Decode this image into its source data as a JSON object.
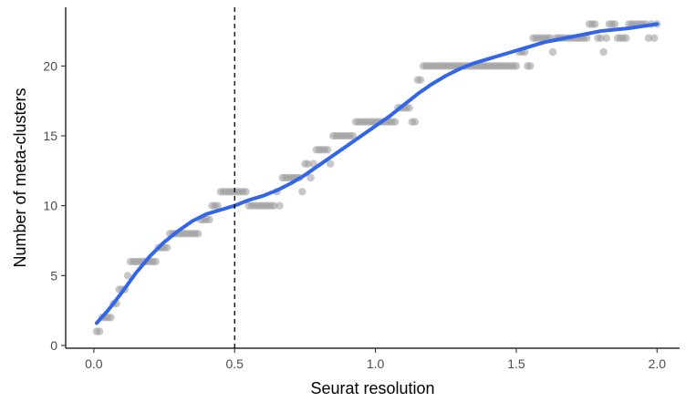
{
  "chart_data": {
    "type": "scatter",
    "title": "",
    "xlabel": "Seurat resolution",
    "ylabel": "Number of meta-clusters",
    "xlim": [
      -0.1,
      2.08
    ],
    "ylim": [
      -0.2,
      24.2
    ],
    "x_ticks": [
      {
        "value": 0.0,
        "label": "0.0"
      },
      {
        "value": 0.5,
        "label": "0.5"
      },
      {
        "value": 1.0,
        "label": "1.0"
      },
      {
        "value": 1.5,
        "label": "1.5"
      },
      {
        "value": 2.0,
        "label": "2.0"
      }
    ],
    "y_ticks": [
      {
        "value": 0,
        "label": "0"
      },
      {
        "value": 5,
        "label": "5"
      },
      {
        "value": 10,
        "label": "10"
      },
      {
        "value": 15,
        "label": "15"
      },
      {
        "value": 20,
        "label": "20"
      }
    ],
    "grid": false,
    "legend": "none",
    "reference_line": {
      "x": 0.5,
      "style": "dashed",
      "color": "#000000"
    },
    "point_color": "#999999",
    "smooth_color": "#3366e6",
    "series": [
      {
        "type": "scatter",
        "points": [
          [
            0.01,
            1
          ],
          [
            0.02,
            1
          ],
          [
            0.03,
            2
          ],
          [
            0.04,
            2
          ],
          [
            0.05,
            2
          ],
          [
            0.06,
            2
          ],
          [
            0.07,
            3
          ],
          [
            0.08,
            3
          ],
          [
            0.09,
            4
          ],
          [
            0.1,
            4
          ],
          [
            0.11,
            4
          ],
          [
            0.12,
            5
          ],
          [
            0.13,
            6
          ],
          [
            0.14,
            6
          ],
          [
            0.15,
            6
          ],
          [
            0.16,
            6
          ],
          [
            0.17,
            6
          ],
          [
            0.18,
            6
          ],
          [
            0.19,
            6
          ],
          [
            0.2,
            6
          ],
          [
            0.21,
            6
          ],
          [
            0.22,
            6
          ],
          [
            0.23,
            7
          ],
          [
            0.24,
            7
          ],
          [
            0.25,
            7
          ],
          [
            0.26,
            7
          ],
          [
            0.27,
            8
          ],
          [
            0.28,
            8
          ],
          [
            0.29,
            8
          ],
          [
            0.3,
            8
          ],
          [
            0.31,
            8
          ],
          [
            0.32,
            8
          ],
          [
            0.33,
            8
          ],
          [
            0.34,
            8
          ],
          [
            0.35,
            8
          ],
          [
            0.36,
            8
          ],
          [
            0.37,
            8
          ],
          [
            0.38,
            9
          ],
          [
            0.39,
            9
          ],
          [
            0.4,
            9
          ],
          [
            0.41,
            9
          ],
          [
            0.42,
            10
          ],
          [
            0.43,
            10
          ],
          [
            0.44,
            10
          ],
          [
            0.45,
            11
          ],
          [
            0.46,
            11
          ],
          [
            0.47,
            11
          ],
          [
            0.48,
            11
          ],
          [
            0.49,
            11
          ],
          [
            0.5,
            11
          ],
          [
            0.51,
            11
          ],
          [
            0.52,
            11
          ],
          [
            0.53,
            11
          ],
          [
            0.54,
            11
          ],
          [
            0.55,
            10
          ],
          [
            0.56,
            10
          ],
          [
            0.57,
            10
          ],
          [
            0.58,
            10
          ],
          [
            0.59,
            10
          ],
          [
            0.6,
            10
          ],
          [
            0.61,
            10
          ],
          [
            0.62,
            10
          ],
          [
            0.63,
            10
          ],
          [
            0.64,
            10
          ],
          [
            0.65,
            11
          ],
          [
            0.66,
            10
          ],
          [
            0.67,
            12
          ],
          [
            0.68,
            12
          ],
          [
            0.69,
            12
          ],
          [
            0.7,
            12
          ],
          [
            0.71,
            12
          ],
          [
            0.72,
            12
          ],
          [
            0.73,
            12
          ],
          [
            0.74,
            11
          ],
          [
            0.75,
            13
          ],
          [
            0.76,
            13
          ],
          [
            0.77,
            12
          ],
          [
            0.78,
            13
          ],
          [
            0.79,
            14
          ],
          [
            0.8,
            14
          ],
          [
            0.81,
            14
          ],
          [
            0.82,
            14
          ],
          [
            0.83,
            14
          ],
          [
            0.84,
            13
          ],
          [
            0.85,
            15
          ],
          [
            0.86,
            15
          ],
          [
            0.87,
            15
          ],
          [
            0.88,
            15
          ],
          [
            0.89,
            15
          ],
          [
            0.9,
            15
          ],
          [
            0.91,
            15
          ],
          [
            0.92,
            15
          ],
          [
            0.93,
            16
          ],
          [
            0.94,
            16
          ],
          [
            0.95,
            16
          ],
          [
            0.96,
            16
          ],
          [
            0.97,
            16
          ],
          [
            0.98,
            16
          ],
          [
            0.99,
            16
          ],
          [
            1.0,
            16
          ],
          [
            1.01,
            16
          ],
          [
            1.02,
            16
          ],
          [
            1.03,
            16
          ],
          [
            1.04,
            16
          ],
          [
            1.05,
            16
          ],
          [
            1.06,
            16
          ],
          [
            1.07,
            16
          ],
          [
            1.08,
            17
          ],
          [
            1.09,
            17
          ],
          [
            1.1,
            17
          ],
          [
            1.11,
            17
          ],
          [
            1.12,
            17
          ],
          [
            1.13,
            16
          ],
          [
            1.14,
            16
          ],
          [
            1.15,
            19
          ],
          [
            1.16,
            19
          ],
          [
            1.17,
            20
          ],
          [
            1.18,
            20
          ],
          [
            1.19,
            20
          ],
          [
            1.2,
            20
          ],
          [
            1.21,
            20
          ],
          [
            1.22,
            20
          ],
          [
            1.23,
            20
          ],
          [
            1.24,
            20
          ],
          [
            1.25,
            20
          ],
          [
            1.26,
            20
          ],
          [
            1.27,
            20
          ],
          [
            1.28,
            20
          ],
          [
            1.29,
            20
          ],
          [
            1.3,
            20
          ],
          [
            1.31,
            20
          ],
          [
            1.32,
            20
          ],
          [
            1.33,
            20
          ],
          [
            1.34,
            20
          ],
          [
            1.35,
            20
          ],
          [
            1.36,
            20
          ],
          [
            1.37,
            20
          ],
          [
            1.38,
            20
          ],
          [
            1.39,
            20
          ],
          [
            1.4,
            20
          ],
          [
            1.41,
            20
          ],
          [
            1.42,
            20
          ],
          [
            1.43,
            20
          ],
          [
            1.44,
            20
          ],
          [
            1.45,
            20
          ],
          [
            1.46,
            20
          ],
          [
            1.47,
            20
          ],
          [
            1.48,
            20
          ],
          [
            1.49,
            20
          ],
          [
            1.5,
            20
          ],
          [
            1.51,
            21
          ],
          [
            1.52,
            21
          ],
          [
            1.53,
            21
          ],
          [
            1.54,
            20
          ],
          [
            1.55,
            20
          ],
          [
            1.56,
            22
          ],
          [
            1.57,
            22
          ],
          [
            1.58,
            22
          ],
          [
            1.59,
            22
          ],
          [
            1.6,
            22
          ],
          [
            1.61,
            22
          ],
          [
            1.62,
            22
          ],
          [
            1.63,
            21
          ],
          [
            1.64,
            22
          ],
          [
            1.65,
            22
          ],
          [
            1.66,
            22
          ],
          [
            1.67,
            22
          ],
          [
            1.68,
            22
          ],
          [
            1.69,
            22
          ],
          [
            1.7,
            22
          ],
          [
            1.71,
            22
          ],
          [
            1.72,
            22
          ],
          [
            1.73,
            22
          ],
          [
            1.74,
            22
          ],
          [
            1.75,
            22
          ],
          [
            1.76,
            23
          ],
          [
            1.77,
            23
          ],
          [
            1.78,
            23
          ],
          [
            1.79,
            22
          ],
          [
            1.8,
            22
          ],
          [
            1.81,
            21
          ],
          [
            1.82,
            22
          ],
          [
            1.83,
            23
          ],
          [
            1.84,
            23
          ],
          [
            1.85,
            23
          ],
          [
            1.86,
            22
          ],
          [
            1.87,
            22
          ],
          [
            1.88,
            22
          ],
          [
            1.89,
            22
          ],
          [
            1.9,
            23
          ],
          [
            1.91,
            23
          ],
          [
            1.92,
            23
          ],
          [
            1.93,
            23
          ],
          [
            1.94,
            23
          ],
          [
            1.95,
            23
          ],
          [
            1.96,
            23
          ],
          [
            1.97,
            22
          ],
          [
            1.98,
            23
          ],
          [
            1.99,
            22
          ],
          [
            2.0,
            23
          ]
        ]
      },
      {
        "type": "line",
        "smooth": true,
        "points": [
          [
            0.01,
            1.6
          ],
          [
            0.05,
            2.5
          ],
          [
            0.1,
            3.8
          ],
          [
            0.15,
            5.2
          ],
          [
            0.2,
            6.4
          ],
          [
            0.25,
            7.4
          ],
          [
            0.3,
            8.2
          ],
          [
            0.35,
            8.9
          ],
          [
            0.4,
            9.4
          ],
          [
            0.45,
            9.7
          ],
          [
            0.5,
            10.0
          ],
          [
            0.55,
            10.4
          ],
          [
            0.6,
            10.7
          ],
          [
            0.65,
            11.1
          ],
          [
            0.7,
            11.6
          ],
          [
            0.75,
            12.2
          ],
          [
            0.8,
            12.9
          ],
          [
            0.85,
            13.6
          ],
          [
            0.9,
            14.3
          ],
          [
            0.95,
            15.0
          ],
          [
            1.0,
            15.7
          ],
          [
            1.05,
            16.4
          ],
          [
            1.1,
            17.2
          ],
          [
            1.15,
            18.0
          ],
          [
            1.2,
            18.7
          ],
          [
            1.25,
            19.3
          ],
          [
            1.3,
            19.8
          ],
          [
            1.35,
            20.2
          ],
          [
            1.4,
            20.5
          ],
          [
            1.45,
            20.8
          ],
          [
            1.5,
            21.1
          ],
          [
            1.55,
            21.4
          ],
          [
            1.6,
            21.7
          ],
          [
            1.65,
            21.9
          ],
          [
            1.7,
            22.1
          ],
          [
            1.75,
            22.3
          ],
          [
            1.8,
            22.5
          ],
          [
            1.85,
            22.6
          ],
          [
            1.9,
            22.7
          ],
          [
            1.95,
            22.85
          ],
          [
            2.0,
            23.0
          ]
        ]
      }
    ]
  }
}
